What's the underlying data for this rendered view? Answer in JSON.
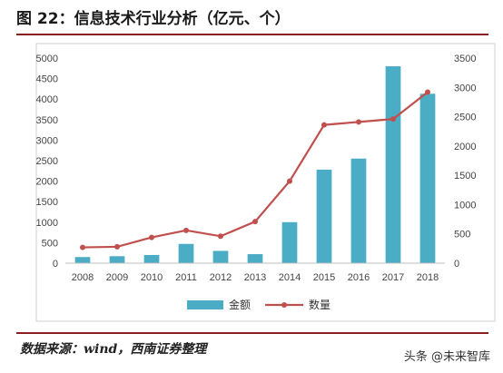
{
  "header": {
    "title": "图 22：信息技术行业分析（亿元、个）"
  },
  "footer": {
    "source": "数据来源：wind，西南证券整理",
    "watermark": "头条 @未来智库"
  },
  "chart_data": {
    "type": "bar",
    "title": "",
    "categories": [
      "2008",
      "2009",
      "2010",
      "2011",
      "2012",
      "2013",
      "2014",
      "2015",
      "2016",
      "2017",
      "2018"
    ],
    "series": [
      {
        "name": "金额",
        "type": "bar",
        "axis": "left",
        "color": "#4bacc6",
        "values": [
          150,
          170,
          200,
          470,
          300,
          220,
          1000,
          2280,
          2550,
          4800,
          4130
        ]
      },
      {
        "name": "数量",
        "type": "line",
        "axis": "right",
        "color": "#c0504d",
        "values": [
          270,
          280,
          440,
          560,
          460,
          710,
          1400,
          2360,
          2410,
          2460,
          2920
        ]
      }
    ],
    "left_axis": {
      "ylim": [
        0,
        5000
      ],
      "ticks": [
        0,
        500,
        1000,
        1500,
        2000,
        2500,
        3000,
        3500,
        4000,
        4500,
        5000
      ]
    },
    "right_axis": {
      "ylim": [
        0,
        3500
      ],
      "ticks": [
        0,
        500,
        1000,
        1500,
        2000,
        2500,
        3000,
        3500
      ]
    },
    "grid": false,
    "legend": "bottom-center"
  }
}
